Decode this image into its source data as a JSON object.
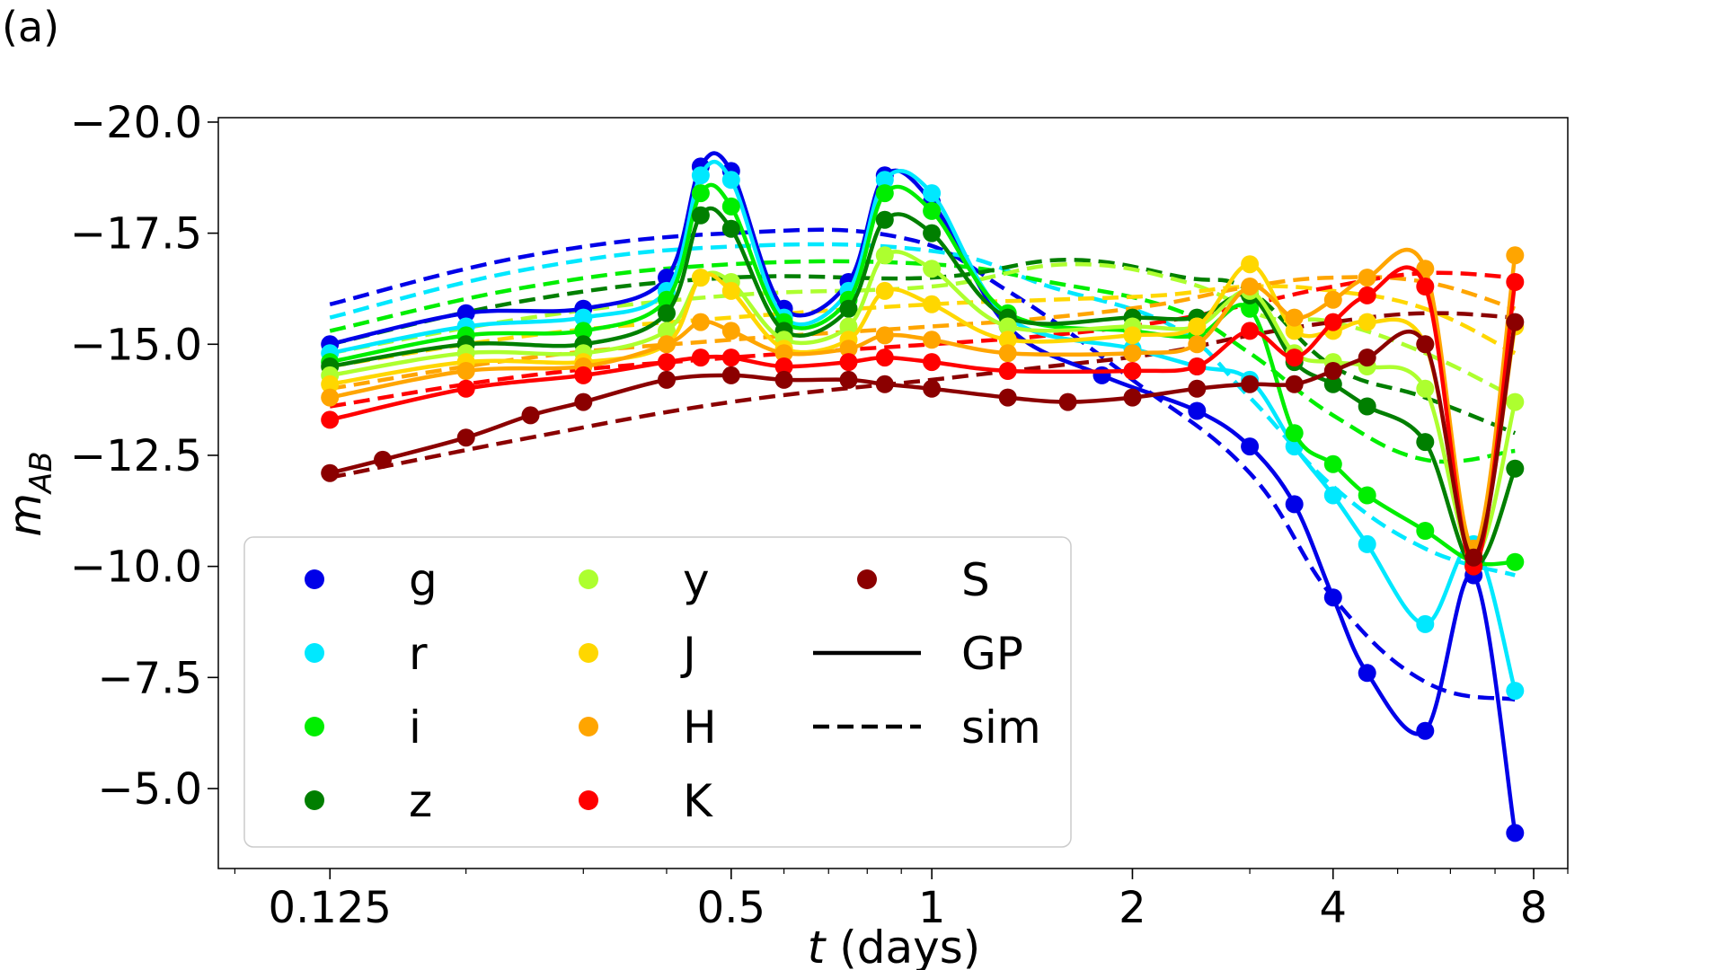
{
  "panel_label": "(a)",
  "chart_data": {
    "type": "line",
    "title": "",
    "xlabel_var": "t",
    "xlabel_unit": " (days)",
    "ylabel_main": "m",
    "ylabel_sub": "AB",
    "xscale": "log",
    "xlim": [
      0.085,
      9.0
    ],
    "ylim": [
      -3.2,
      -20.1
    ],
    "yinverted": true,
    "xticks": [
      {
        "value": 0.125,
        "label": "0.125"
      },
      {
        "value": 0.5,
        "label": "0.5"
      },
      {
        "value": 1,
        "label": "1"
      },
      {
        "value": 2,
        "label": "2"
      },
      {
        "value": 4,
        "label": "4"
      },
      {
        "value": 8,
        "label": "8"
      }
    ],
    "yticks": [
      {
        "value": -20.0,
        "label": "−20.0"
      },
      {
        "value": -17.5,
        "label": "−17.5"
      },
      {
        "value": -15.0,
        "label": "−15.0"
      },
      {
        "value": -12.5,
        "label": "−12.5"
      },
      {
        "value": -10.0,
        "label": "−10.0"
      },
      {
        "value": -7.5,
        "label": "−7.5"
      },
      {
        "value": -5.0,
        "label": "−5.0"
      }
    ],
    "legend": {
      "placement": "lower-left",
      "entries": [
        {
          "label": "g",
          "kind": "marker",
          "series": "g"
        },
        {
          "label": "r",
          "kind": "marker",
          "series": "r"
        },
        {
          "label": "i",
          "kind": "marker",
          "series": "i"
        },
        {
          "label": "z",
          "kind": "marker",
          "series": "z"
        },
        {
          "label": "y",
          "kind": "marker",
          "series": "y"
        },
        {
          "label": "J",
          "kind": "marker",
          "series": "J"
        },
        {
          "label": "H",
          "kind": "marker",
          "series": "H"
        },
        {
          "label": "K",
          "kind": "marker",
          "series": "K"
        },
        {
          "label": "S",
          "kind": "marker",
          "series": "S"
        },
        {
          "label": "GP",
          "kind": "solid"
        },
        {
          "label": "sim",
          "kind": "dashed"
        }
      ]
    },
    "series": [
      {
        "name": "g",
        "color": "#0000e8",
        "points": [
          [
            0.125,
            -15.0
          ],
          [
            0.2,
            -15.7
          ],
          [
            0.3,
            -15.8
          ],
          [
            0.4,
            -16.5
          ],
          [
            0.45,
            -19.0
          ],
          [
            0.5,
            -18.9
          ],
          [
            0.6,
            -15.8
          ],
          [
            0.75,
            -16.4
          ],
          [
            0.85,
            -18.8
          ],
          [
            1.0,
            -18.2
          ],
          [
            1.3,
            -15.4
          ],
          [
            1.8,
            -14.3
          ],
          [
            2.5,
            -13.5
          ],
          [
            3.0,
            -12.7
          ],
          [
            3.5,
            -11.4
          ],
          [
            4.0,
            -9.3
          ],
          [
            4.5,
            -7.6
          ],
          [
            5.5,
            -6.3
          ],
          [
            6.5,
            -9.8
          ],
          [
            7.5,
            -4.0
          ]
        ],
        "sim": [
          [
            0.125,
            -15.9
          ],
          [
            0.25,
            -17.0
          ],
          [
            0.5,
            -17.5
          ],
          [
            0.9,
            -17.4
          ],
          [
            1.3,
            -16.2
          ],
          [
            2.0,
            -14.2
          ],
          [
            3.0,
            -12.1
          ],
          [
            4.0,
            -9.3
          ],
          [
            5.5,
            -7.4
          ],
          [
            7.5,
            -7.0
          ]
        ]
      },
      {
        "name": "r",
        "color": "#00e8ff",
        "points": [
          [
            0.125,
            -14.8
          ],
          [
            0.2,
            -15.4
          ],
          [
            0.3,
            -15.6
          ],
          [
            0.4,
            -16.2
          ],
          [
            0.45,
            -18.8
          ],
          [
            0.5,
            -18.7
          ],
          [
            0.6,
            -15.6
          ],
          [
            0.75,
            -16.2
          ],
          [
            0.85,
            -18.7
          ],
          [
            1.0,
            -18.4
          ],
          [
            1.3,
            -15.6
          ],
          [
            2.0,
            -14.9
          ],
          [
            2.5,
            -14.5
          ],
          [
            3.0,
            -14.2
          ],
          [
            3.5,
            -12.7
          ],
          [
            4.0,
            -11.6
          ],
          [
            4.5,
            -10.5
          ],
          [
            5.5,
            -8.7
          ],
          [
            6.5,
            -10.5
          ],
          [
            7.5,
            -7.2
          ]
        ],
        "sim": [
          [
            0.125,
            -15.6
          ],
          [
            0.25,
            -16.7
          ],
          [
            0.5,
            -17.2
          ],
          [
            1.0,
            -17.1
          ],
          [
            1.5,
            -16.3
          ],
          [
            2.3,
            -15.4
          ],
          [
            3.0,
            -13.8
          ],
          [
            4.0,
            -11.8
          ],
          [
            5.5,
            -10.4
          ],
          [
            7.5,
            -9.8
          ]
        ]
      },
      {
        "name": "i",
        "color": "#00ee00",
        "points": [
          [
            0.125,
            -14.6
          ],
          [
            0.2,
            -15.2
          ],
          [
            0.3,
            -15.3
          ],
          [
            0.4,
            -16.0
          ],
          [
            0.45,
            -18.4
          ],
          [
            0.5,
            -18.1
          ],
          [
            0.6,
            -15.5
          ],
          [
            0.75,
            -16.0
          ],
          [
            0.85,
            -18.4
          ],
          [
            1.0,
            -18.0
          ],
          [
            1.3,
            -15.7
          ],
          [
            2.0,
            -15.3
          ],
          [
            2.5,
            -15.2
          ],
          [
            3.0,
            -15.8
          ],
          [
            3.5,
            -13.0
          ],
          [
            4.0,
            -12.3
          ],
          [
            4.5,
            -11.6
          ],
          [
            5.5,
            -10.8
          ],
          [
            6.5,
            -10.1
          ],
          [
            7.5,
            -10.1
          ]
        ],
        "sim": [
          [
            0.125,
            -15.3
          ],
          [
            0.25,
            -16.3
          ],
          [
            0.5,
            -16.8
          ],
          [
            1.0,
            -16.8
          ],
          [
            1.5,
            -16.4
          ],
          [
            2.3,
            -15.8
          ],
          [
            3.0,
            -14.8
          ],
          [
            4.0,
            -13.4
          ],
          [
            5.5,
            -12.4
          ],
          [
            7.5,
            -12.6
          ]
        ]
      },
      {
        "name": "z",
        "color": "#007f00",
        "points": [
          [
            0.125,
            -14.5
          ],
          [
            0.2,
            -15.0
          ],
          [
            0.3,
            -15.0
          ],
          [
            0.4,
            -15.7
          ],
          [
            0.45,
            -17.9
          ],
          [
            0.5,
            -17.6
          ],
          [
            0.6,
            -15.3
          ],
          [
            0.75,
            -15.8
          ],
          [
            0.85,
            -17.8
          ],
          [
            1.0,
            -17.5
          ],
          [
            1.3,
            -15.6
          ],
          [
            2.0,
            -15.6
          ],
          [
            2.5,
            -15.6
          ],
          [
            3.0,
            -16.1
          ],
          [
            3.5,
            -14.6
          ],
          [
            4.0,
            -14.1
          ],
          [
            4.5,
            -13.6
          ],
          [
            5.5,
            -12.8
          ],
          [
            6.5,
            -10.0
          ],
          [
            7.5,
            -12.2
          ]
        ],
        "sim": [
          [
            0.125,
            -15.0
          ],
          [
            0.25,
            -16.0
          ],
          [
            0.5,
            -16.5
          ],
          [
            1.0,
            -16.5
          ],
          [
            1.6,
            -16.9
          ],
          [
            2.4,
            -16.5
          ],
          [
            3.0,
            -16.2
          ],
          [
            4.0,
            -14.5
          ],
          [
            5.5,
            -13.8
          ],
          [
            7.5,
            -13.0
          ]
        ]
      },
      {
        "name": "y",
        "color": "#adff2f",
        "points": [
          [
            0.125,
            -14.3
          ],
          [
            0.2,
            -14.8
          ],
          [
            0.3,
            -14.8
          ],
          [
            0.4,
            -15.3
          ],
          [
            0.45,
            -16.5
          ],
          [
            0.5,
            -16.4
          ],
          [
            0.6,
            -15.1
          ],
          [
            0.75,
            -15.4
          ],
          [
            0.85,
            -17.0
          ],
          [
            1.0,
            -16.7
          ],
          [
            1.3,
            -15.4
          ],
          [
            2.0,
            -15.4
          ],
          [
            2.5,
            -15.4
          ],
          [
            3.0,
            -16.2
          ],
          [
            3.5,
            -14.8
          ],
          [
            4.0,
            -14.6
          ],
          [
            4.5,
            -14.5
          ],
          [
            5.5,
            -14.0
          ],
          [
            6.5,
            -10.2
          ],
          [
            7.5,
            -13.7
          ]
        ],
        "sim": [
          [
            0.125,
            -14.8
          ],
          [
            0.25,
            -15.6
          ],
          [
            0.5,
            -16.1
          ],
          [
            1.0,
            -16.3
          ],
          [
            1.6,
            -16.8
          ],
          [
            2.4,
            -16.4
          ],
          [
            3.2,
            -15.6
          ],
          [
            4.0,
            -15.5
          ],
          [
            5.5,
            -14.8
          ],
          [
            7.5,
            -13.8
          ]
        ]
      },
      {
        "name": "J",
        "color": "#ffd700",
        "points": [
          [
            0.125,
            -14.1
          ],
          [
            0.2,
            -14.6
          ],
          [
            0.3,
            -14.6
          ],
          [
            0.4,
            -15.0
          ],
          [
            0.45,
            -16.5
          ],
          [
            0.5,
            -16.2
          ],
          [
            0.6,
            -14.9
          ],
          [
            0.75,
            -15.1
          ],
          [
            0.85,
            -16.2
          ],
          [
            1.0,
            -15.9
          ],
          [
            1.3,
            -15.1
          ],
          [
            2.0,
            -15.2
          ],
          [
            2.5,
            -15.4
          ],
          [
            3.0,
            -16.8
          ],
          [
            3.5,
            -15.3
          ],
          [
            4.0,
            -15.3
          ],
          [
            4.5,
            -15.5
          ],
          [
            5.5,
            -15.0
          ],
          [
            6.5,
            -10.3
          ],
          [
            7.5,
            -15.4
          ]
        ],
        "sim": [
          [
            0.125,
            -14.5
          ],
          [
            0.25,
            -15.2
          ],
          [
            0.5,
            -15.6
          ],
          [
            1.0,
            -15.9
          ],
          [
            1.5,
            -16.0
          ],
          [
            2.2,
            -16.1
          ],
          [
            3.0,
            -16.3
          ],
          [
            4.0,
            -16.2
          ],
          [
            5.5,
            -15.8
          ],
          [
            7.5,
            -14.8
          ]
        ]
      },
      {
        "name": "H",
        "color": "#ffa500",
        "points": [
          [
            0.125,
            -13.8
          ],
          [
            0.2,
            -14.4
          ],
          [
            0.3,
            -14.5
          ],
          [
            0.4,
            -15.0
          ],
          [
            0.45,
            -15.5
          ],
          [
            0.5,
            -15.3
          ],
          [
            0.6,
            -14.8
          ],
          [
            0.75,
            -14.9
          ],
          [
            0.85,
            -15.2
          ],
          [
            1.0,
            -15.1
          ],
          [
            1.3,
            -14.8
          ],
          [
            2.0,
            -14.8
          ],
          [
            2.5,
            -15.0
          ],
          [
            3.0,
            -16.3
          ],
          [
            3.5,
            -15.6
          ],
          [
            4.0,
            -16.0
          ],
          [
            4.5,
            -16.5
          ],
          [
            5.5,
            -16.7
          ],
          [
            6.5,
            -10.4
          ],
          [
            7.5,
            -17.0
          ]
        ],
        "sim": [
          [
            0.125,
            -14.0
          ],
          [
            0.25,
            -14.7
          ],
          [
            0.5,
            -15.1
          ],
          [
            1.0,
            -15.4
          ],
          [
            1.5,
            -15.6
          ],
          [
            2.2,
            -15.9
          ],
          [
            3.0,
            -16.3
          ],
          [
            4.0,
            -16.5
          ],
          [
            5.5,
            -16.4
          ],
          [
            7.5,
            -15.8
          ]
        ]
      },
      {
        "name": "K",
        "color": "#ff0000",
        "points": [
          [
            0.125,
            -13.3
          ],
          [
            0.2,
            -14.0
          ],
          [
            0.3,
            -14.3
          ],
          [
            0.4,
            -14.6
          ],
          [
            0.45,
            -14.7
          ],
          [
            0.5,
            -14.7
          ],
          [
            0.6,
            -14.5
          ],
          [
            0.75,
            -14.6
          ],
          [
            0.85,
            -14.7
          ],
          [
            1.0,
            -14.6
          ],
          [
            1.3,
            -14.4
          ],
          [
            2.0,
            -14.4
          ],
          [
            2.5,
            -14.5
          ],
          [
            3.0,
            -15.3
          ],
          [
            3.5,
            -14.7
          ],
          [
            4.0,
            -15.5
          ],
          [
            4.5,
            -16.1
          ],
          [
            5.5,
            -16.3
          ],
          [
            6.5,
            -10.0
          ],
          [
            7.5,
            -16.4
          ]
        ],
        "sim": [
          [
            0.125,
            -13.6
          ],
          [
            0.25,
            -14.3
          ],
          [
            0.5,
            -14.7
          ],
          [
            1.0,
            -15.0
          ],
          [
            1.5,
            -15.2
          ],
          [
            2.2,
            -15.5
          ],
          [
            3.0,
            -15.9
          ],
          [
            4.0,
            -16.3
          ],
          [
            5.5,
            -16.6
          ],
          [
            7.5,
            -16.5
          ]
        ]
      },
      {
        "name": "S",
        "color": "#8b0000",
        "points": [
          [
            0.125,
            -12.1
          ],
          [
            0.15,
            -12.4
          ],
          [
            0.2,
            -12.9
          ],
          [
            0.25,
            -13.4
          ],
          [
            0.3,
            -13.7
          ],
          [
            0.4,
            -14.2
          ],
          [
            0.5,
            -14.3
          ],
          [
            0.6,
            -14.2
          ],
          [
            0.75,
            -14.2
          ],
          [
            0.85,
            -14.1
          ],
          [
            1.0,
            -14.0
          ],
          [
            1.3,
            -13.8
          ],
          [
            1.6,
            -13.7
          ],
          [
            2.0,
            -13.8
          ],
          [
            2.5,
            -14.0
          ],
          [
            3.0,
            -14.1
          ],
          [
            3.5,
            -14.1
          ],
          [
            4.0,
            -14.4
          ],
          [
            4.5,
            -14.7
          ],
          [
            5.5,
            -15.0
          ],
          [
            6.5,
            -10.2
          ],
          [
            7.5,
            -15.5
          ]
        ],
        "sim": [
          [
            0.125,
            -12.0
          ],
          [
            0.25,
            -12.9
          ],
          [
            0.5,
            -13.7
          ],
          [
            1.0,
            -14.2
          ],
          [
            1.5,
            -14.5
          ],
          [
            2.2,
            -14.8
          ],
          [
            3.0,
            -15.2
          ],
          [
            4.0,
            -15.5
          ],
          [
            5.5,
            -15.7
          ],
          [
            7.5,
            -15.6
          ]
        ]
      }
    ]
  }
}
